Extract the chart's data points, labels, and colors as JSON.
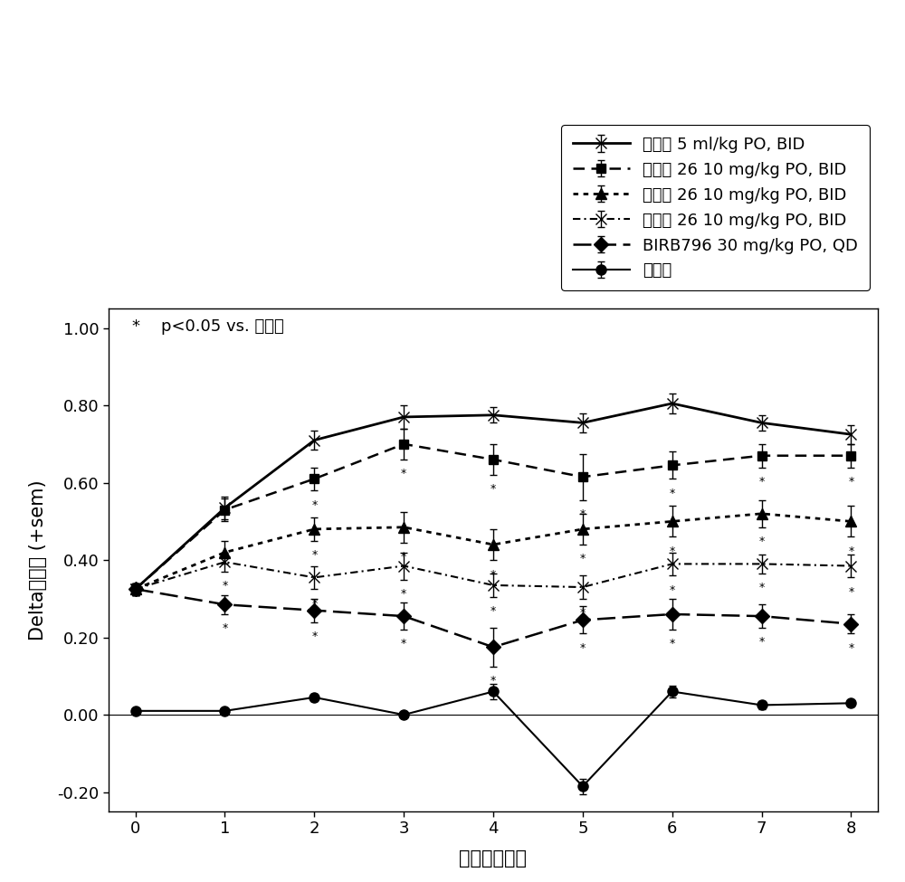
{
  "x": [
    0,
    1,
    2,
    3,
    4,
    5,
    6,
    7,
    8
  ],
  "series": [
    {
      "label": "赋形剂 5 ml/kg PO, BID",
      "y": [
        0.325,
        0.535,
        0.71,
        0.77,
        0.775,
        0.755,
        0.805,
        0.755,
        0.725
      ],
      "yerr": [
        0.015,
        0.03,
        0.025,
        0.03,
        0.02,
        0.025,
        0.025,
        0.02,
        0.025
      ],
      "linestyle": "solid",
      "marker": "x",
      "markersize": 9,
      "linewidth": 2.0
    },
    {
      "label": "实施例 26 10 mg/kg PO, BID",
      "y": [
        0.325,
        0.53,
        0.61,
        0.7,
        0.66,
        0.615,
        0.645,
        0.67,
        0.67
      ],
      "yerr": [
        0.015,
        0.03,
        0.03,
        0.04,
        0.04,
        0.06,
        0.035,
        0.03,
        0.03
      ],
      "linestyle": "dashed",
      "marker": "s",
      "markersize": 7,
      "linewidth": 1.8
    },
    {
      "label": "实施例 26 10 mg/kg PO, BID",
      "y": [
        0.325,
        0.42,
        0.48,
        0.485,
        0.44,
        0.48,
        0.5,
        0.52,
        0.5
      ],
      "yerr": [
        0.015,
        0.03,
        0.03,
        0.04,
        0.04,
        0.04,
        0.04,
        0.035,
        0.04
      ],
      "linestyle": "dotted",
      "marker": "^",
      "markersize": 8,
      "linewidth": 2.0
    },
    {
      "label": "实施例 26 10 mg/kg PO, BID",
      "y": [
        0.325,
        0.395,
        0.355,
        0.385,
        0.335,
        0.33,
        0.39,
        0.39,
        0.385
      ],
      "yerr": [
        0.015,
        0.025,
        0.03,
        0.035,
        0.03,
        0.03,
        0.03,
        0.025,
        0.03
      ],
      "linestyle": "dashdot",
      "marker": "x",
      "markersize": 9,
      "linewidth": 1.5
    },
    {
      "label": "BIRB796 30 mg/kg PO, QD",
      "y": [
        0.325,
        0.285,
        0.27,
        0.255,
        0.175,
        0.245,
        0.26,
        0.255,
        0.235
      ],
      "yerr": [
        0.015,
        0.025,
        0.03,
        0.035,
        0.05,
        0.035,
        0.04,
        0.03,
        0.025
      ],
      "linestyle": "dashed_long",
      "marker": "D",
      "markersize": 8,
      "linewidth": 1.8
    },
    {
      "label": "自然的",
      "y": [
        0.01,
        0.01,
        0.045,
        0.0,
        0.06,
        -0.185,
        0.06,
        0.025,
        0.03
      ],
      "yerr": [
        0.005,
        0.005,
        0.01,
        0.005,
        0.02,
        0.02,
        0.015,
        0.01,
        0.008
      ],
      "linestyle": "solid",
      "marker": "o",
      "markersize": 8,
      "linewidth": 1.5
    }
  ],
  "star_data": [
    {
      "si": 1,
      "xi_list": [
        2,
        3,
        4,
        5,
        6,
        7,
        8
      ]
    },
    {
      "si": 2,
      "xi_list": [
        2,
        3,
        4,
        5,
        6,
        7,
        8
      ]
    },
    {
      "si": 3,
      "xi_list": [
        1,
        2,
        3,
        4,
        5,
        6,
        7,
        8
      ]
    },
    {
      "si": 4,
      "xi_list": [
        1,
        2,
        3,
        4,
        5,
        6,
        7,
        8
      ]
    }
  ],
  "xlabel": "治疗后的天数",
  "ylabel": "Delta爬体积 (+sem)",
  "annotation_text": "*    p<0.05 vs. 赋形剂",
  "xlim": [
    -0.3,
    8.3
  ],
  "ylim": [
    -0.25,
    1.05
  ],
  "yticks": [
    -0.2,
    0.0,
    0.2,
    0.4,
    0.6,
    0.8,
    1.0
  ],
  "xticks": [
    0,
    1,
    2,
    3,
    4,
    5,
    6,
    7,
    8
  ],
  "figsize": [
    10.0,
    9.75
  ],
  "dpi": 100,
  "legend_fontsize": 13,
  "axis_fontsize": 15,
  "tick_fontsize": 13,
  "annotation_fontsize": 13
}
